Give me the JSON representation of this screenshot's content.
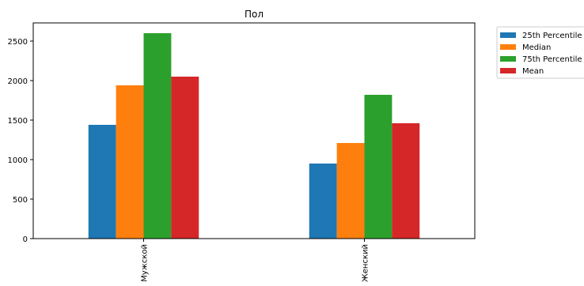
{
  "chart_data": {
    "type": "bar",
    "title": "Пол",
    "xlabel": "",
    "ylabel": "",
    "categories": [
      "Мужской",
      "Женский"
    ],
    "series": [
      {
        "name": "25th Percentile",
        "color": "#1f77b4",
        "values": [
          1440,
          950
        ]
      },
      {
        "name": "Median",
        "color": "#ff7f0e",
        "values": [
          1940,
          1210
        ]
      },
      {
        "name": "75th Percentile",
        "color": "#2ca02c",
        "values": [
          2600,
          1820
        ]
      },
      {
        "name": "Mean",
        "color": "#d62728",
        "values": [
          2050,
          1460
        ]
      }
    ],
    "ylim": [
      0,
      2730
    ],
    "yticks": [
      0,
      500,
      1000,
      1500,
      2000,
      2500
    ],
    "grid": false,
    "legend_position": "outside top-right",
    "x_tick_rotation": 90
  }
}
